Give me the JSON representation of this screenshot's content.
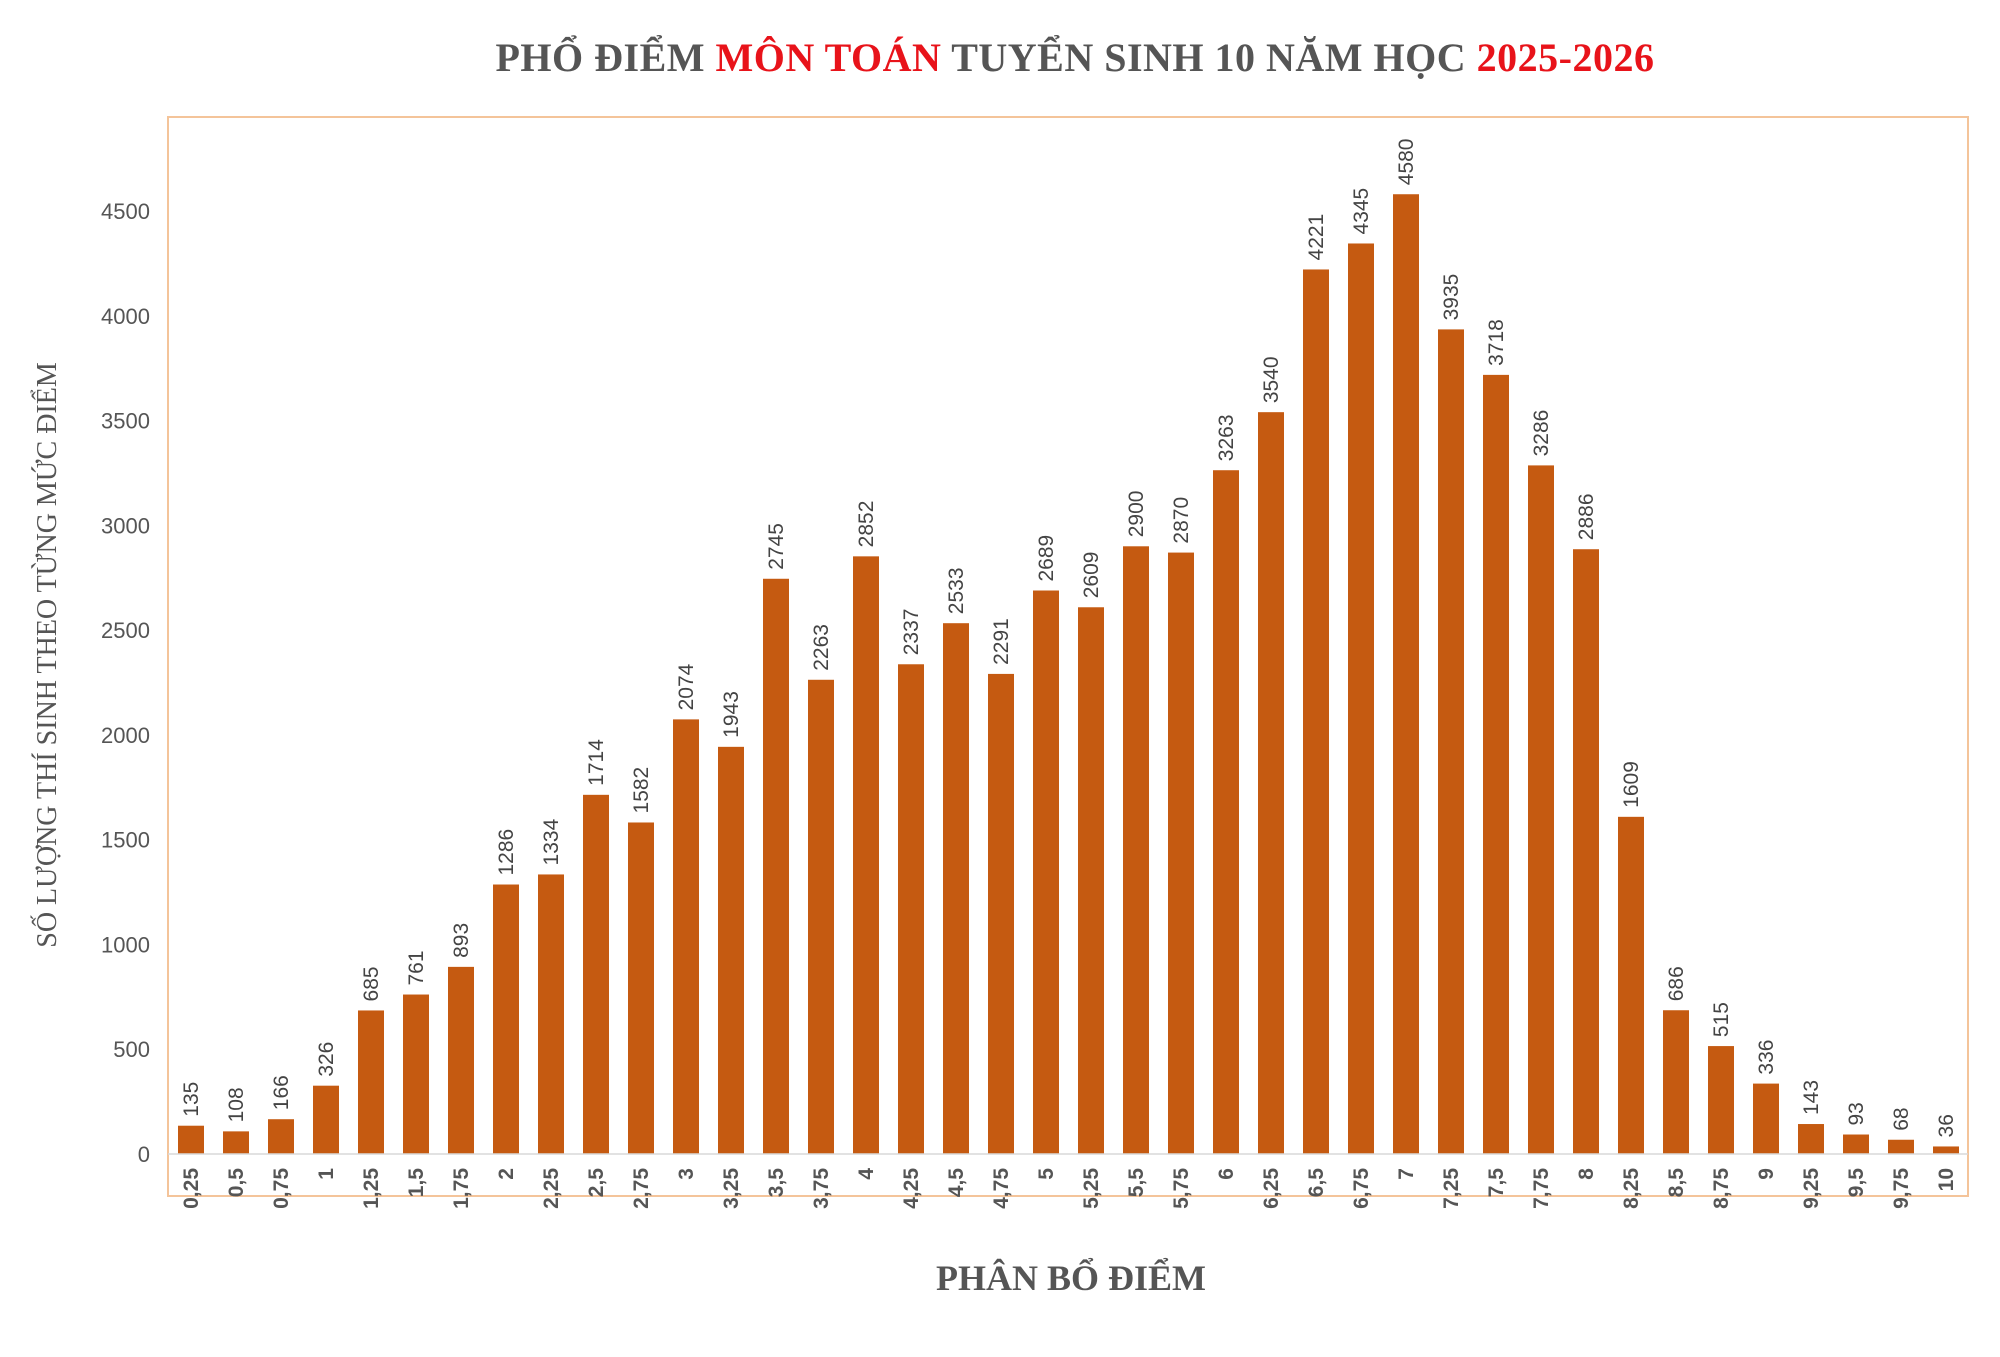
{
  "title": {
    "part1": "PHỔ ĐIỂM ",
    "part2": "MÔN TOÁN",
    "part3": " TUYỂN SINH 10 NĂM HỌC ",
    "part4": "2025-2026"
  },
  "colors": {
    "bar": "#c55a11",
    "frame": "#f4c49a",
    "title_text": "#555555",
    "title_highlight": "#e8131a"
  },
  "chart_data": {
    "type": "bar",
    "title": "PHỔ ĐIỂM MÔN TOÁN TUYỂN SINH 10 NĂM HỌC 2025-2026",
    "xlabel": "PHÂN BỔ ĐIỂM",
    "ylabel": "SỐ LƯỢNG THÍ SINH THEO TỪNG MỨC ĐIỂM",
    "categories": [
      "0,25",
      "0,5",
      "0,75",
      "1",
      "1,25",
      "1,5",
      "1,75",
      "2",
      "2,25",
      "2,5",
      "2,75",
      "3",
      "3,25",
      "3,5",
      "3,75",
      "4",
      "4,25",
      "4,5",
      "4,75",
      "5",
      "5,25",
      "5,5",
      "5,75",
      "6",
      "6,25",
      "6,5",
      "6,75",
      "7",
      "7,25",
      "7,5",
      "7,75",
      "8",
      "8,25",
      "8,5",
      "8,75",
      "9",
      "9,25",
      "9,5",
      "9,75",
      "10"
    ],
    "values": [
      135,
      108,
      166,
      326,
      685,
      761,
      893,
      1286,
      1334,
      1714,
      1582,
      2074,
      1943,
      2745,
      2263,
      2852,
      2337,
      2533,
      2291,
      2689,
      2609,
      2900,
      2870,
      3263,
      3540,
      4221,
      4345,
      4580,
      3935,
      3718,
      3286,
      2886,
      1609,
      686,
      515,
      336,
      143,
      93,
      68,
      36
    ],
    "ylim": [
      0,
      4800
    ],
    "yticks": [
      0,
      500,
      1000,
      1500,
      2000,
      2500,
      3000,
      3500,
      4000,
      4500
    ],
    "grid": false,
    "data_labels": true,
    "legend": "none"
  }
}
